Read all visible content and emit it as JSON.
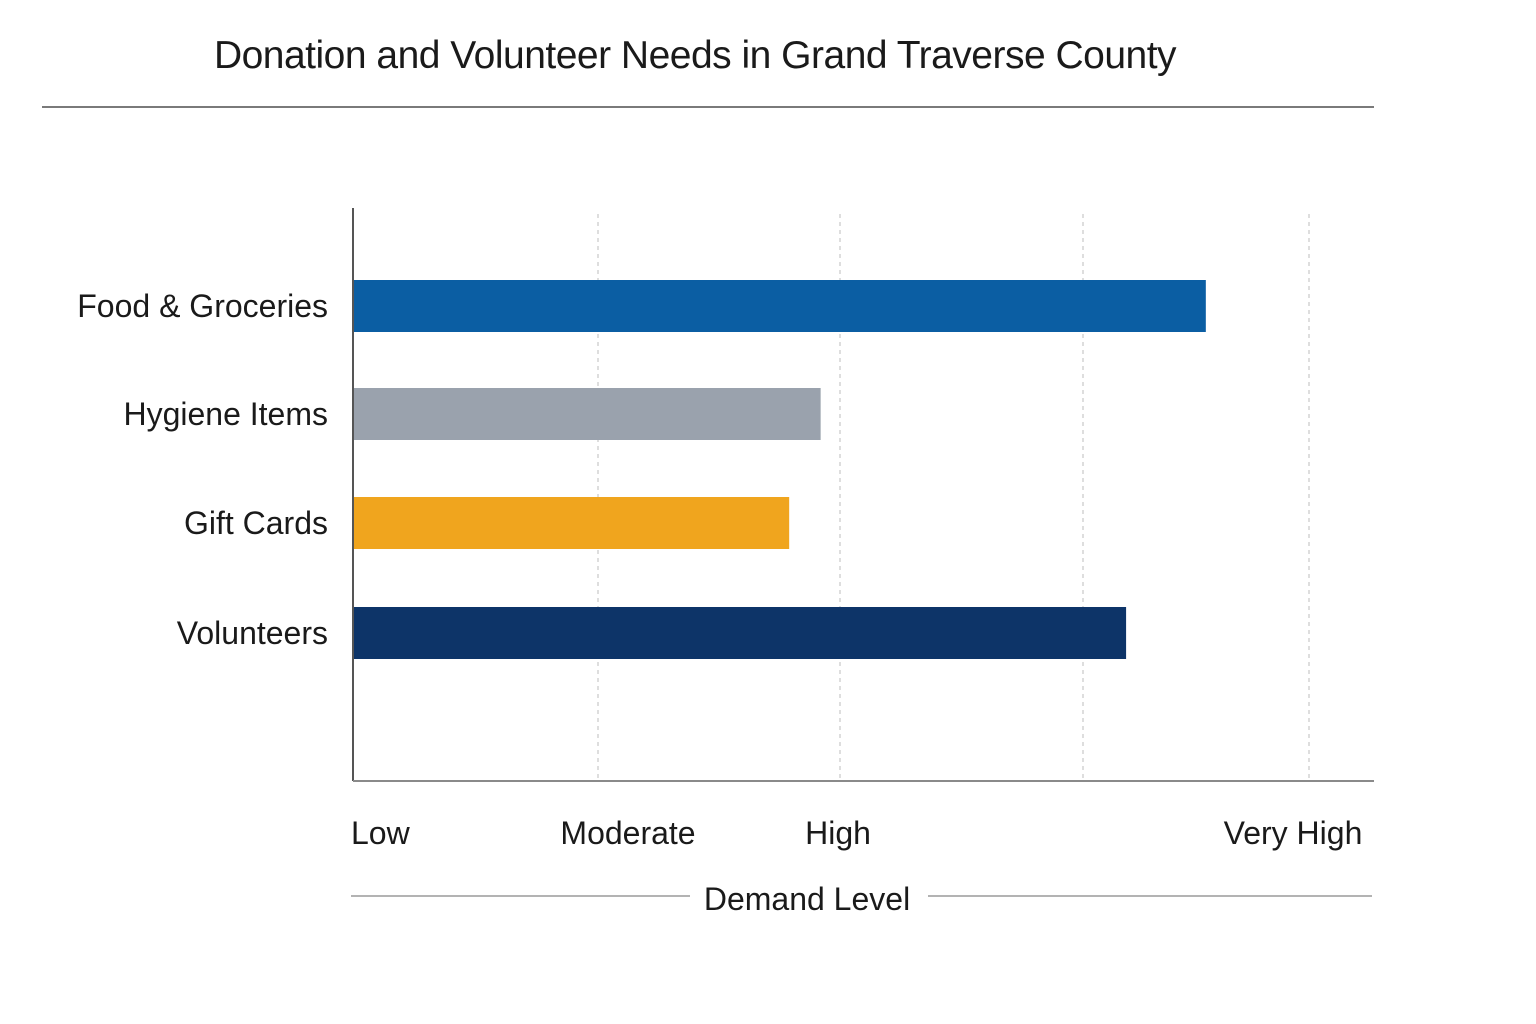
{
  "chart_data": {
    "type": "bar",
    "orientation": "horizontal",
    "title": "Donation and Volunteer Needs in Grand Traverse County",
    "xlabel": "Demand Level",
    "ylabel": "",
    "xlim": [
      0,
      3
    ],
    "grid": true,
    "x_ticks": [
      {
        "value": 0,
        "label": "Low"
      },
      {
        "value": 1,
        "label": "Moderate"
      },
      {
        "value": 2,
        "label": "High"
      },
      {
        "value": 3,
        "label": "Very High"
      }
    ],
    "categories": [
      "Food & Groceries",
      "Hygiene Items",
      "Gift Cards",
      "Volunteers"
    ],
    "values": [
      2.78,
      1.92,
      1.79,
      2.61
    ],
    "colors": [
      "#0b5ea3",
      "#9aa2ad",
      "#f0a51e",
      "#0d3468"
    ]
  }
}
